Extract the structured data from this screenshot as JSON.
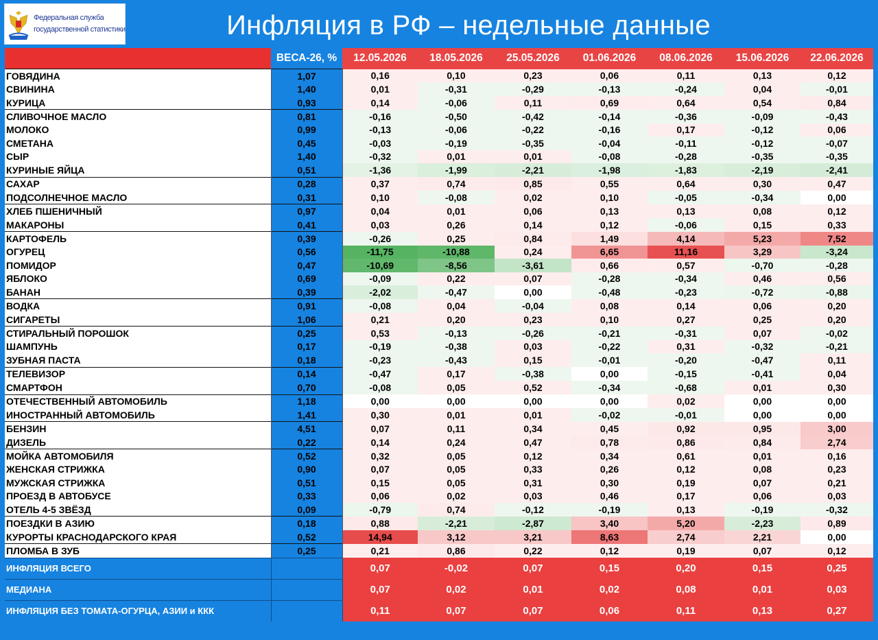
{
  "header": {
    "title": "Инфляция в РФ – недельные данные",
    "logo_line1": "Федеральная служба",
    "logo_line2": "государственной статистики",
    "logo_icon": "russian-eagle-emblem",
    "accent": "#1683e0"
  },
  "chart_data": {
    "type": "table",
    "weights_header": "ВЕСА-26, %",
    "dates": [
      "12.05.2026",
      "18.05.2026",
      "25.05.2026",
      "01.06.2026",
      "08.06.2026",
      "15.06.2026",
      "22.06.2026"
    ],
    "colors": {
      "header_red": "#e94444",
      "weight_blue": "#1683e0",
      "positive": "#e85050",
      "negative": "#58b364"
    },
    "items": [
      {
        "name": "ГОВЯДИНА",
        "weight": "1,07",
        "values": [
          "0,16",
          "0,10",
          "0,23",
          "0,06",
          "0,11",
          "0,13",
          "0,12"
        ],
        "group_start": true
      },
      {
        "name": "СВИНИНА",
        "weight": "1,40",
        "values": [
          "0,01",
          "-0,31",
          "-0,29",
          "-0,13",
          "-0,24",
          "0,04",
          "-0,01"
        ]
      },
      {
        "name": "КУРИЦА",
        "weight": "0,93",
        "values": [
          "0,14",
          "-0,06",
          "0,11",
          "0,69",
          "0,64",
          "0,54",
          "0,84"
        ]
      },
      {
        "name": "СЛИВОЧНОЕ МАСЛО",
        "weight": "0,81",
        "values": [
          "-0,16",
          "-0,50",
          "-0,42",
          "-0,14",
          "-0,36",
          "-0,09",
          "-0,43"
        ],
        "group_start": true
      },
      {
        "name": "МОЛОКО",
        "weight": "0,99",
        "values": [
          "-0,13",
          "-0,06",
          "-0,22",
          "-0,16",
          "0,17",
          "-0,12",
          "0,06"
        ]
      },
      {
        "name": "СМЕТАНА",
        "weight": "0,45",
        "values": [
          "-0,03",
          "-0,19",
          "-0,35",
          "-0,04",
          "-0,11",
          "-0,12",
          "-0,07"
        ]
      },
      {
        "name": "СЫР",
        "weight": "1,40",
        "values": [
          "-0,32",
          "0,01",
          "0,01",
          "-0,08",
          "-0,28",
          "-0,35",
          "-0,35"
        ]
      },
      {
        "name": "КУРИНЫЕ ЯЙЦА",
        "weight": "0,51",
        "values": [
          "-1,36",
          "-1,99",
          "-2,21",
          "-1,98",
          "-1,83",
          "-2,19",
          "-2,41"
        ]
      },
      {
        "name": "САХАР",
        "weight": "0,28",
        "values": [
          "0,37",
          "0,74",
          "0,85",
          "0,55",
          "0,64",
          "0,30",
          "0,47"
        ],
        "group_start": true
      },
      {
        "name": "ПОДСОЛНЕЧНОЕ МАСЛО",
        "weight": "0,31",
        "values": [
          "0,10",
          "-0,08",
          "0,02",
          "0,10",
          "-0,05",
          "-0,34",
          "0,00"
        ]
      },
      {
        "name": "ХЛЕБ ПШЕНИЧНЫЙ",
        "weight": "0,97",
        "values": [
          "0,04",
          "0,01",
          "0,06",
          "0,13",
          "0,13",
          "0,08",
          "0,12"
        ],
        "group_start": true
      },
      {
        "name": "МАКАРОНЫ",
        "weight": "0,41",
        "values": [
          "0,03",
          "0,26",
          "0,14",
          "0,12",
          "-0,06",
          "0,15",
          "0,33"
        ]
      },
      {
        "name": "КАРТОФЕЛЬ",
        "weight": "0,39",
        "values": [
          "-0,26",
          "0,25",
          "0,84",
          "1,49",
          "4,14",
          "5,23",
          "7,52"
        ],
        "group_start": true
      },
      {
        "name": "ОГУРЕЦ",
        "weight": "0,56",
        "values": [
          "-11,75",
          "-10,88",
          "0,24",
          "6,65",
          "11,16",
          "3,29",
          "-3,24"
        ]
      },
      {
        "name": "ПОМИДОР",
        "weight": "0,47",
        "values": [
          "-10,69",
          "-8,56",
          "-3,61",
          "0,66",
          "0,57",
          "-0,70",
          "-0,28"
        ]
      },
      {
        "name": "ЯБЛОКО",
        "weight": "0,69",
        "values": [
          "-0,09",
          "0,22",
          "0,07",
          "-0,28",
          "-0,34",
          "0,46",
          "0,56"
        ]
      },
      {
        "name": "БАНАН",
        "weight": "0,39",
        "values": [
          "-2,02",
          "-0,47",
          "0,00",
          "-0,48",
          "-0,23",
          "-0,72",
          "-0,88"
        ]
      },
      {
        "name": "ВОДКА",
        "weight": "0,91",
        "values": [
          "-0,08",
          "0,04",
          "-0,04",
          "0,08",
          "0,14",
          "0,06",
          "0,20"
        ],
        "group_start": true
      },
      {
        "name": "СИГАРЕТЫ",
        "weight": "1,06",
        "values": [
          "0,21",
          "0,20",
          "0,23",
          "0,10",
          "0,27",
          "0,25",
          "0,20"
        ]
      },
      {
        "name": "СТИРАЛЬНЫЙ ПОРОШОК",
        "weight": "0,25",
        "values": [
          "0,53",
          "-0,13",
          "-0,26",
          "-0,21",
          "-0,31",
          "0,07",
          "-0,02"
        ],
        "group_start": true
      },
      {
        "name": "ШАМПУНЬ",
        "weight": "0,17",
        "values": [
          "-0,19",
          "-0,38",
          "0,03",
          "-0,22",
          "0,31",
          "-0,32",
          "-0,21"
        ]
      },
      {
        "name": "ЗУБНАЯ ПАСТА",
        "weight": "0,18",
        "values": [
          "-0,23",
          "-0,43",
          "0,15",
          "-0,01",
          "-0,20",
          "-0,47",
          "0,11"
        ]
      },
      {
        "name": "ТЕЛЕВИЗОР",
        "weight": "0,14",
        "values": [
          "-0,47",
          "0,17",
          "-0,38",
          "0,00",
          "-0,15",
          "-0,41",
          "0,04"
        ],
        "group_start": true
      },
      {
        "name": "СМАРТФОН",
        "weight": "0,70",
        "values": [
          "-0,08",
          "0,05",
          "0,52",
          "-0,34",
          "-0,68",
          "0,01",
          "0,30"
        ]
      },
      {
        "name": "ОТЕЧЕСТВЕННЫЙ АВТОМОБИЛЬ",
        "weight": "1,18",
        "values": [
          "0,00",
          "0,00",
          "0,00",
          "0,00",
          "0,02",
          "0,00",
          "0,00"
        ],
        "group_start": true
      },
      {
        "name": "ИНОСТРАННЫЙ АВТОМОБИЛЬ",
        "weight": "1,41",
        "values": [
          "0,30",
          "0,01",
          "0,01",
          "-0,02",
          "-0,01",
          "0,00",
          "0,00"
        ]
      },
      {
        "name": "БЕНЗИН",
        "weight": "4,51",
        "values": [
          "0,07",
          "0,11",
          "0,34",
          "0,45",
          "0,92",
          "0,95",
          "3,00"
        ],
        "group_start": true
      },
      {
        "name": "ДИЗЕЛЬ",
        "weight": "0,22",
        "values": [
          "0,14",
          "0,24",
          "0,47",
          "0,78",
          "0,86",
          "0,84",
          "2,74"
        ]
      },
      {
        "name": "МОЙКА АВТОМОБИЛЯ",
        "weight": "0,52",
        "values": [
          "0,32",
          "0,05",
          "0,12",
          "0,34",
          "0,61",
          "0,01",
          "0,16"
        ],
        "group_start": true
      },
      {
        "name": "ЖЕНСКАЯ СТРИЖКА",
        "weight": "0,90",
        "values": [
          "0,07",
          "0,05",
          "0,33",
          "0,26",
          "0,12",
          "0,08",
          "0,23"
        ]
      },
      {
        "name": "МУЖСКАЯ СТРИЖКА",
        "weight": "0,51",
        "values": [
          "0,15",
          "0,05",
          "0,31",
          "0,30",
          "0,19",
          "0,07",
          "0,21"
        ]
      },
      {
        "name": "ПРОЕЗД В АВТОБУСЕ",
        "weight": "0,33",
        "values": [
          "0,06",
          "0,02",
          "0,03",
          "0,46",
          "0,17",
          "0,06",
          "0,03"
        ]
      },
      {
        "name": "ОТЕЛЬ 4-5 ЗВЁЗД",
        "weight": "0,09",
        "values": [
          "-0,79",
          "0,74",
          "-0,12",
          "-0,19",
          "0,13",
          "-0,19",
          "-0,32"
        ]
      },
      {
        "name": "ПОЕЗДКИ В АЗИЮ",
        "weight": "0,18",
        "values": [
          "0,88",
          "-2,21",
          "-2,87",
          "3,40",
          "5,20",
          "-2,23",
          "0,89"
        ],
        "group_start": true
      },
      {
        "name": "КУРОРТЫ КРАСНОДАРСКОГО КРАЯ",
        "weight": "0,52",
        "values": [
          "14,94",
          "3,12",
          "3,21",
          "8,63",
          "2,74",
          "2,21",
          "0,00"
        ]
      },
      {
        "name": "ПЛОМБА В ЗУБ",
        "weight": "0,25",
        "values": [
          "0,21",
          "0,86",
          "0,22",
          "0,12",
          "0,19",
          "0,07",
          "0,12"
        ],
        "group_start": true
      }
    ],
    "summary": [
      {
        "name": "ИНФЛЯЦИЯ ВСЕГО",
        "values": [
          "0,07",
          "-0,02",
          "0,07",
          "0,15",
          "0,20",
          "0,15",
          "0,25"
        ]
      },
      {
        "name": "МЕДИАНА",
        "values": [
          "0,07",
          "0,02",
          "0,01",
          "0,02",
          "0,08",
          "0,01",
          "0,03"
        ]
      },
      {
        "name": "ИНФЛЯЦИЯ БЕЗ ТОМАТА-ОГУРЦА, АЗИИ и ККК",
        "values": [
          "0,11",
          "0,07",
          "0,07",
          "0,06",
          "0,11",
          "0,13",
          "0,27"
        ]
      }
    ]
  }
}
